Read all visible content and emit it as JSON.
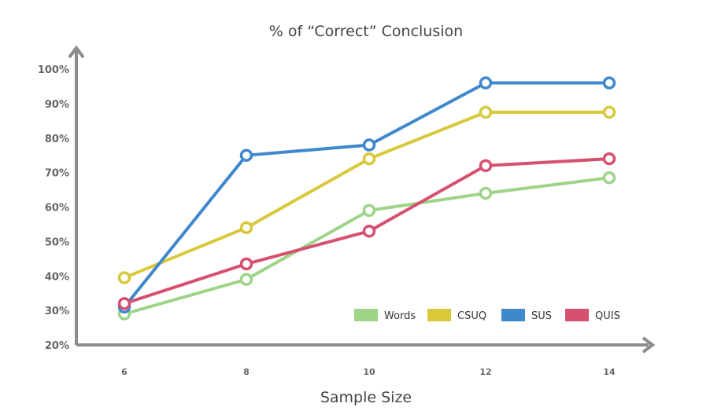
{
  "chart_data": {
    "type": "line",
    "title": "% of “Correct” Conclusion",
    "xlabel": "Sample Size",
    "ylabel": "",
    "x": [
      6,
      8,
      10,
      12,
      14
    ],
    "ylim": [
      20,
      100
    ],
    "yticks": [
      "20%",
      "30%",
      "40%",
      "50%",
      "60%",
      "70%",
      "80%",
      "90%",
      "100%"
    ],
    "series": [
      {
        "name": "Words",
        "color": "#9dd487",
        "values": [
          29,
          39,
          59,
          64,
          68.5
        ]
      },
      {
        "name": "CSUQ",
        "color": "#d8c83a",
        "values": [
          39.5,
          54,
          74,
          87.5,
          87.5
        ]
      },
      {
        "name": "SUS",
        "color": "#3f88cc",
        "values": [
          31,
          75,
          78,
          96,
          96
        ]
      },
      {
        "name": "QUIS",
        "color": "#d6506f",
        "values": [
          32,
          43.5,
          53,
          72,
          74
        ]
      }
    ],
    "grid": false,
    "legend_position": "bottom-right"
  }
}
